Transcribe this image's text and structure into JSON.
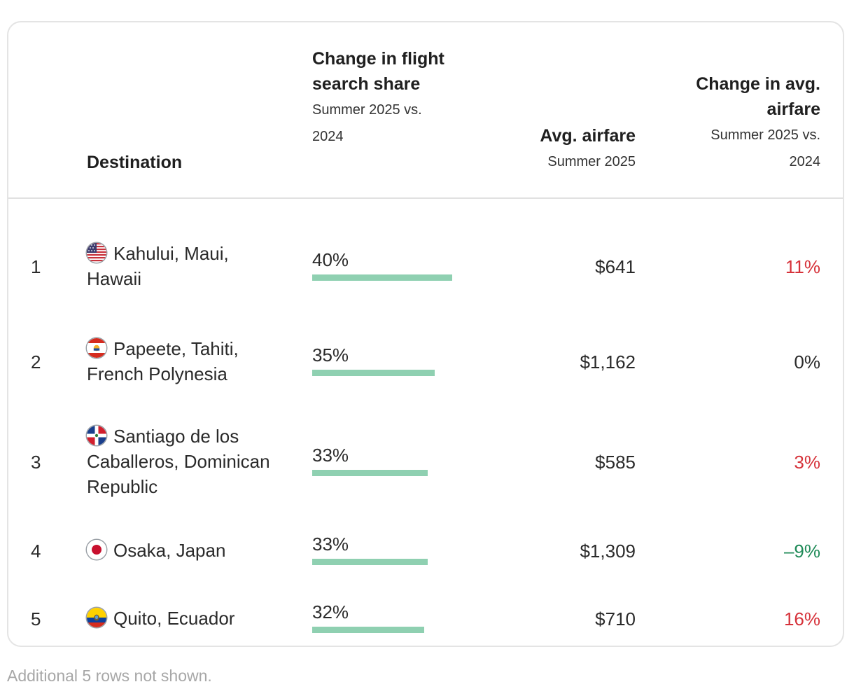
{
  "chart_data": {
    "type": "table",
    "columns": {
      "destination": {
        "title": "Destination"
      },
      "share": {
        "title": "Change in flight search share",
        "subtitle": "Summer 2025 vs. 2024"
      },
      "fare": {
        "title": "Avg. airfare",
        "subtitle": "Summer 2025"
      },
      "fare_change": {
        "title": "Change in avg. airfare",
        "subtitle": "Summer 2025 vs. 2024"
      }
    },
    "bar_max": 40,
    "colors": {
      "bar": "#8fd0b1",
      "positive": "#d6323a",
      "negative": "#1e8a57",
      "neutral": "#2a2a2a"
    },
    "rows": [
      {
        "rank": "1",
        "destination": "Kahului, Maui, Hawaii",
        "flag": "us-flag-icon",
        "share": 40,
        "share_label": "40%",
        "fare": "$641",
        "fare_change": 11,
        "fare_change_label": "11%"
      },
      {
        "rank": "2",
        "destination": "Papeete, Tahiti, French Polynesia",
        "flag": "french-polynesia-flag-icon",
        "share": 35,
        "share_label": "35%",
        "fare": "$1,162",
        "fare_change": 0,
        "fare_change_label": "0%"
      },
      {
        "rank": "3",
        "destination": "Santiago de los Caballeros, Dominican Republic",
        "flag": "dominican-republic-flag-icon",
        "share": 33,
        "share_label": "33%",
        "fare": "$585",
        "fare_change": 3,
        "fare_change_label": "3%"
      },
      {
        "rank": "4",
        "destination": "Osaka, Japan",
        "flag": "japan-flag-icon",
        "share": 33,
        "share_label": "33%",
        "fare": "$1,309",
        "fare_change": -9,
        "fare_change_label": "–9%"
      },
      {
        "rank": "5",
        "destination": "Quito, Ecuador",
        "flag": "ecuador-flag-icon",
        "share": 32,
        "share_label": "32%",
        "fare": "$710",
        "fare_change": 16,
        "fare_change_label": "16%"
      }
    ]
  },
  "footnote": "Additional 5 rows not shown."
}
